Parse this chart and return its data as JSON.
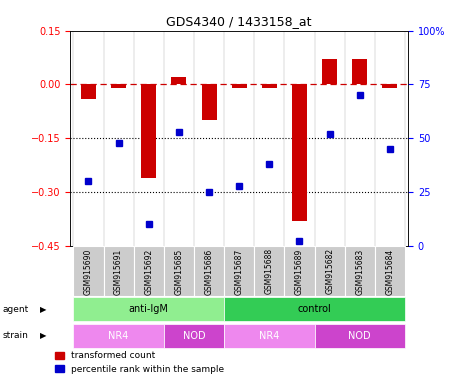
{
  "title": "GDS4340 / 1433158_at",
  "samples": [
    "GSM915690",
    "GSM915691",
    "GSM915692",
    "GSM915685",
    "GSM915686",
    "GSM915687",
    "GSM915688",
    "GSM915689",
    "GSM915682",
    "GSM915683",
    "GSM915684"
  ],
  "red_values": [
    -0.04,
    -0.01,
    -0.26,
    0.02,
    -0.1,
    -0.01,
    -0.01,
    -0.38,
    0.07,
    0.07,
    -0.01
  ],
  "blue_values": [
    30,
    48,
    10,
    53,
    25,
    28,
    38,
    2,
    52,
    70,
    45
  ],
  "ylim_left": [
    -0.45,
    0.15
  ],
  "ylim_right": [
    0,
    100
  ],
  "yticks_left": [
    0.15,
    0.0,
    -0.15,
    -0.3,
    -0.45
  ],
  "yticks_right": [
    100,
    75,
    50,
    25,
    0
  ],
  "ytick_right_labels": [
    "100%",
    "75",
    "50",
    "25",
    "0"
  ],
  "hlines": [
    -0.15,
    -0.3
  ],
  "agent_groups": [
    {
      "label": "anti-IgM",
      "start": 0,
      "end": 5,
      "color": "#90ee90"
    },
    {
      "label": "control",
      "start": 5,
      "end": 11,
      "color": "#33cc55"
    }
  ],
  "strain_groups": [
    {
      "label": "NR4",
      "start": 0,
      "end": 3,
      "color": "#ee88ee"
    },
    {
      "label": "NOD",
      "start": 3,
      "end": 5,
      "color": "#cc44cc"
    },
    {
      "label": "NR4",
      "start": 5,
      "end": 8,
      "color": "#ee88ee"
    },
    {
      "label": "NOD",
      "start": 8,
      "end": 11,
      "color": "#cc44cc"
    }
  ],
  "red_color": "#cc0000",
  "blue_color": "#0000cc",
  "bar_width": 0.5,
  "legend_items": [
    "transformed count",
    "percentile rank within the sample"
  ],
  "sample_box_color": "#cccccc",
  "agent_label": "agent",
  "strain_label": "strain"
}
